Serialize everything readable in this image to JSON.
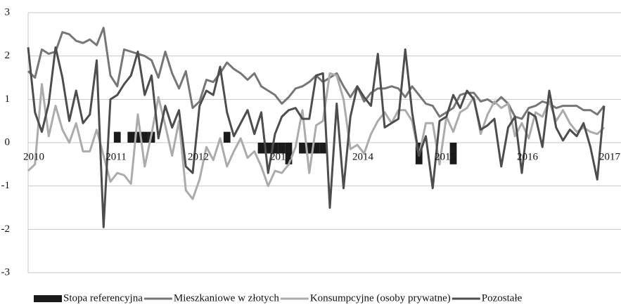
{
  "chart_data": {
    "type": "line",
    "categories": [
      "2010",
      null,
      null,
      null,
      null,
      null,
      null,
      null,
      null,
      null,
      null,
      null,
      "2011",
      null,
      null,
      null,
      null,
      null,
      null,
      null,
      null,
      null,
      null,
      null,
      "2012",
      null,
      null,
      null,
      null,
      null,
      null,
      null,
      null,
      null,
      null,
      null,
      "2013",
      null,
      null,
      null,
      null,
      null,
      null,
      null,
      null,
      null,
      null,
      null,
      "2014",
      null,
      null,
      null,
      null,
      null,
      null,
      null,
      null,
      null,
      null,
      null,
      "2015",
      null,
      null,
      null,
      null,
      null,
      null,
      null,
      null,
      null,
      null,
      null,
      "2016",
      null,
      null,
      null,
      null,
      null,
      null,
      null,
      null,
      null,
      null,
      null,
      "2017"
    ],
    "ylim": [
      -3,
      3
    ],
    "yticks": [
      -3,
      -2,
      -1,
      0,
      1,
      2,
      3
    ],
    "grid": true,
    "series": [
      {
        "name": "Stopa referencyjna",
        "type": "bar",
        "color": "#1a1a1a",
        "values": [
          0,
          0,
          0,
          0,
          0,
          0,
          0,
          0,
          0,
          0,
          0,
          0,
          0,
          0.25,
          0,
          0.25,
          0.25,
          0.25,
          0.25,
          0,
          0,
          0,
          0,
          0,
          0,
          0,
          0,
          0,
          0,
          0.25,
          0,
          0,
          0,
          0,
          -0.25,
          -0.25,
          -0.25,
          -0.25,
          -0.5,
          0,
          -0.25,
          -0.25,
          -0.25,
          -0.25,
          0,
          0,
          0,
          0,
          0,
          0,
          0,
          0,
          0,
          0,
          0,
          0,
          0,
          -0.5,
          0,
          0,
          0,
          0,
          -0.5,
          0,
          0,
          0,
          0,
          0,
          0,
          0,
          0,
          0,
          0,
          0,
          0,
          0,
          0,
          0,
          0,
          0,
          0,
          0,
          0,
          0,
          0
        ]
      },
      {
        "name": "Mieszkaniowe w złotych",
        "type": "line",
        "color": "#767676",
        "values": [
          1.65,
          1.5,
          2.15,
          2.05,
          2.1,
          2.55,
          2.5,
          2.35,
          2.3,
          2.38,
          2.25,
          2.65,
          1.55,
          1.3,
          2.15,
          2.1,
          2.05,
          2.0,
          1.9,
          1.5,
          2.1,
          1.6,
          1.25,
          1.65,
          0.8,
          0.95,
          1.45,
          1.4,
          1.6,
          1.85,
          1.7,
          1.6,
          1.45,
          1.6,
          1.3,
          1.2,
          1.1,
          0.9,
          1.05,
          1.25,
          1.3,
          1.4,
          1.55,
          1.4,
          1.5,
          1.6,
          1.3,
          1.05,
          1.3,
          0.95,
          1.15,
          1.25,
          1.25,
          1.3,
          1.25,
          1.05,
          1.3,
          1.1,
          0.9,
          0.85,
          0.6,
          0.7,
          0.8,
          1.1,
          1.15,
          1.15,
          0.95,
          1.0,
          0.9,
          1.05,
          0.9,
          0.6,
          0.55,
          0.8,
          0.85,
          0.95,
          0.9,
          0.8,
          0.85,
          0.85,
          0.85,
          0.75,
          0.75,
          0.65,
          0.85
        ]
      },
      {
        "name": "Konsumpcyjne (osoby prywatne)",
        "type": "line",
        "color": "#ababab",
        "values": [
          -0.65,
          -0.5,
          1.35,
          0.15,
          0.85,
          0.3,
          0.0,
          0.45,
          -0.2,
          -0.2,
          0.3,
          -0.3,
          -0.9,
          -0.7,
          -0.75,
          -0.95,
          0.65,
          -0.55,
          0.2,
          1.05,
          0.4,
          -0.3,
          0.5,
          -1.1,
          -1.3,
          -0.85,
          -0.1,
          -0.4,
          0.1,
          -0.55,
          -0.2,
          0.1,
          -0.35,
          -0.2,
          -0.55,
          -1.0,
          -0.65,
          -0.7,
          -0.5,
          -0.1,
          0.75,
          -0.7,
          0.4,
          0.5,
          1.6,
          1.55,
          1.0,
          -0.15,
          -0.05,
          -0.25,
          0.2,
          0.5,
          0.7,
          0.45,
          0.75,
          0.75,
          0.5,
          -0.3,
          0.45,
          0.45,
          -0.5,
          0.6,
          0.25,
          0.7,
          0.8,
          1.05,
          0.2,
          0.65,
          0.95,
          0.8,
          0.9,
          0.15,
          0.45,
          0.1,
          0.7,
          0.6,
          0.95,
          0.5,
          0.75,
          0.45,
          0.25,
          0.35,
          0.25,
          0.2,
          0.35
        ]
      },
      {
        "name": "Pozostałe",
        "type": "line",
        "color": "#4d4d4d",
        "values": [
          2.2,
          0.7,
          0.25,
          0.9,
          2.2,
          1.5,
          0.5,
          1.2,
          0.45,
          0.65,
          1.9,
          -1.95,
          1.0,
          1.1,
          1.35,
          1.55,
          2.1,
          1.1,
          1.55,
          0.1,
          0.85,
          0.35,
          0.75,
          -0.55,
          -0.7,
          0.85,
          1.2,
          1.1,
          1.75,
          0.7,
          0.15,
          0.45,
          0.75,
          0.2,
          0.7,
          -0.7,
          0.2,
          0.6,
          0.75,
          0.8,
          0.55,
          0.55,
          1.55,
          1.6,
          -1.5,
          0.9,
          -1.05,
          0.6,
          1.3,
          1.05,
          0.85,
          2.05,
          0.35,
          0.45,
          0.55,
          2.15,
          0.7,
          -0.3,
          0.15,
          -1.05,
          0.5,
          0.6,
          1.1,
          0.8,
          1.2,
          1.0,
          0.3,
          0.4,
          0.55,
          -0.55,
          0.35,
          0.6,
          -0.7,
          0.7,
          0.6,
          -0.1,
          1.2,
          0.35,
          0.05,
          0.3,
          0.15,
          0.45,
          -0.1,
          -0.85,
          0.85
        ]
      }
    ]
  }
}
